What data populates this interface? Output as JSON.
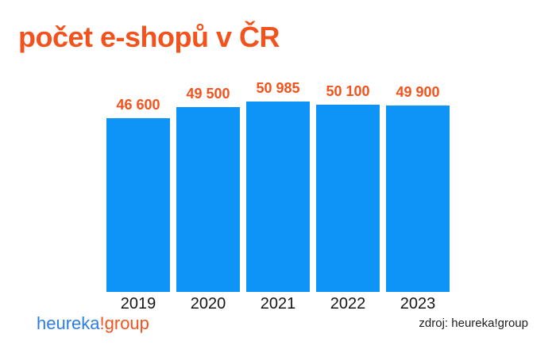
{
  "title": "počet e-shopů v ČR",
  "chart_data": {
    "type": "bar",
    "title": "počet e-shopů v ČR",
    "categories": [
      "2019",
      "2020",
      "2021",
      "2022",
      "2023"
    ],
    "values": [
      46600,
      49500,
      50985,
      50100,
      49900
    ],
    "value_labels": [
      "46 600",
      "49 500",
      "50 985",
      "50 100",
      "49 900"
    ],
    "xlabel": "",
    "ylabel": "",
    "ylim": [
      0,
      50985
    ],
    "grid": false,
    "legend": false,
    "bar_color": "#0d94f6",
    "value_label_color": "#f4521d"
  },
  "logo": {
    "part1": "heureka",
    "part2": "!group",
    "part1_color": "#2b7de2",
    "part2_color": "#f4521d"
  },
  "source": "zdroj: heureka!group",
  "colors": {
    "background": "#ffffff",
    "accent_orange": "#f4521d",
    "bar_blue": "#0d94f6",
    "logo_blue": "#2b7de2",
    "text_dark": "#161616"
  }
}
